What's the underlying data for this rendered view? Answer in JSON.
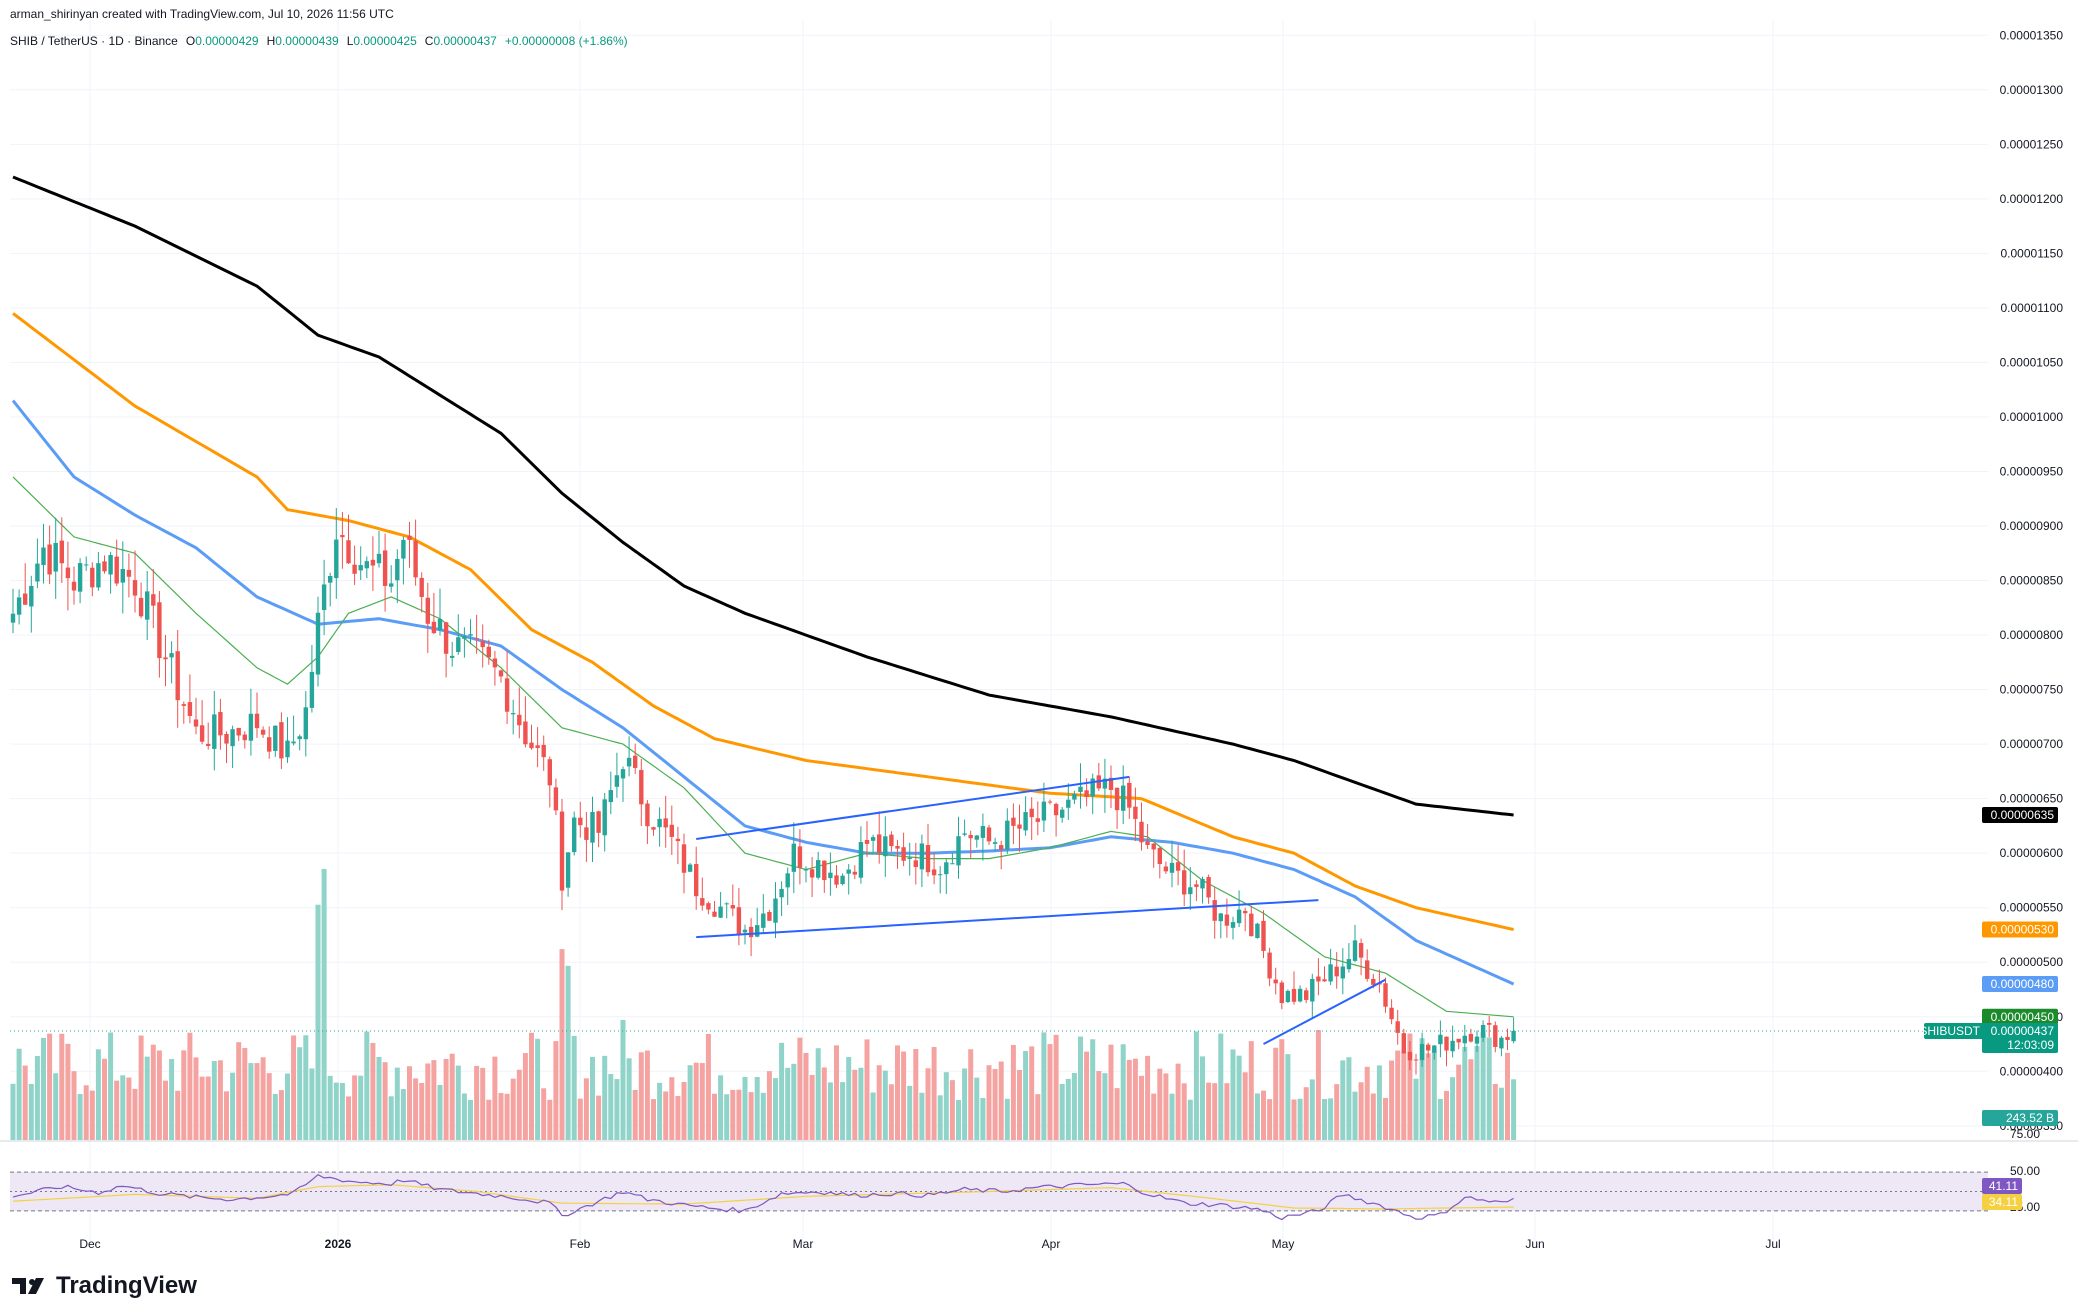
{
  "header": {
    "credit": "arman_shirinyan created with TradingView.com, Jul 10, 2026 11:56 UTC"
  },
  "legend": {
    "symbol": "SHIB / TetherUS · 1D · Binance",
    "o_label": "O",
    "o_value": "0.00000429",
    "h_label": "H",
    "h_value": "0.00000439",
    "l_label": "L",
    "l_value": "0.00000425",
    "c_label": "C",
    "c_value": "0.00000437",
    "change": "+0.00000008 (+1.86%)"
  },
  "brand": {
    "name": "TradingView"
  },
  "colors": {
    "up": "#26a69a",
    "down": "#ef5350",
    "vol_up": "#8fd3c9",
    "vol_down": "#f5a3a1",
    "ma_black": "#000000",
    "ma_orange": "#ff9800",
    "ma_blue": "#5b9cf6",
    "ma_green": "#4caf50",
    "trendline": "#2962ff",
    "rsi": "#7e57c2",
    "rsi_ma": "#f5d142",
    "rsi_band": "#ede7f6"
  },
  "chart_data": {
    "type": "candlestick",
    "price_ylim": [
      3.37e-06,
      1.364e-05
    ],
    "price_ticks": [
      "0.00001350",
      "0.00001300",
      "0.00001250",
      "0.00001200",
      "0.00001150",
      "0.00001100",
      "0.00001050",
      "0.00001000",
      "0.00000950",
      "0.00000900",
      "0.00000850",
      "0.00000800",
      "0.00000750",
      "0.00000700",
      "0.00000650",
      "0.00000600",
      "0.00000550",
      "0.00000500",
      "0.00000450",
      "0.00000400",
      "0.00000350"
    ],
    "x_labels": [
      "Dec",
      "2026",
      "Feb",
      "Mar",
      "Apr",
      "May",
      "Jun",
      "Jul"
    ],
    "close_anchors": [
      [
        0,
        8.2e-06
      ],
      [
        5,
        8.8e-06
      ],
      [
        10,
        8.5e-06
      ],
      [
        15,
        8.7e-06
      ],
      [
        20,
        8.5e-06
      ],
      [
        25,
        7.8e-06
      ],
      [
        30,
        7.1e-06
      ],
      [
        35,
        7.1e-06
      ],
      [
        40,
        7.2e-06
      ],
      [
        45,
        6.9e-06
      ],
      [
        48,
        7.3e-06
      ],
      [
        50,
        8.1e-06
      ],
      [
        53,
        9e-06
      ],
      [
        58,
        8.6e-06
      ],
      [
        62,
        8.5e-06
      ],
      [
        64,
        8.9e-06
      ],
      [
        68,
        8.2e-06
      ],
      [
        72,
        7.9e-06
      ],
      [
        76,
        7.8e-06
      ],
      [
        80,
        7.6e-06
      ],
      [
        84,
        7.1e-06
      ],
      [
        88,
        6.7e-06
      ],
      [
        90,
        5.8e-06
      ],
      [
        92,
        6.3e-06
      ],
      [
        96,
        6.2e-06
      ],
      [
        100,
        6.9e-06
      ],
      [
        104,
        6.4e-06
      ],
      [
        108,
        6.1e-06
      ],
      [
        112,
        5.7e-06
      ],
      [
        116,
        5.5e-06
      ],
      [
        120,
        5.3e-06
      ],
      [
        124,
        5.5e-06
      ],
      [
        128,
        6e-06
      ],
      [
        132,
        5.9e-06
      ],
      [
        136,
        5.8e-06
      ],
      [
        140,
        6.1e-06
      ],
      [
        144,
        6e-06
      ],
      [
        148,
        6e-06
      ],
      [
        152,
        5.9e-06
      ],
      [
        156,
        6.2e-06
      ],
      [
        160,
        6.1e-06
      ],
      [
        164,
        6.2e-06
      ],
      [
        168,
        6.3e-06
      ],
      [
        172,
        6.4e-06
      ],
      [
        176,
        6.5e-06
      ],
      [
        180,
        6.6e-06
      ],
      [
        183,
        6.4e-06
      ],
      [
        186,
        6e-06
      ],
      [
        190,
        5.8e-06
      ],
      [
        194,
        5.7e-06
      ],
      [
        198,
        5.4e-06
      ],
      [
        202,
        5.5e-06
      ],
      [
        205,
        5.1e-06
      ],
      [
        208,
        4.7e-06
      ],
      [
        212,
        4.7e-06
      ],
      [
        216,
        4.9e-06
      ],
      [
        220,
        5.1e-06
      ],
      [
        224,
        4.8e-06
      ],
      [
        228,
        4.2e-06
      ],
      [
        232,
        4.2e-06
      ],
      [
        236,
        4.3e-06
      ],
      [
        240,
        4.4e-06
      ],
      [
        244,
        4.3e-06
      ],
      [
        246,
        4.37e-06
      ]
    ],
    "moving_averages": [
      {
        "color_key": "ma_black",
        "points": [
          [
            0,
            1.22e-05
          ],
          [
            20,
            1.175e-05
          ],
          [
            40,
            1.12e-05
          ],
          [
            50,
            1.075e-05
          ],
          [
            60,
            1.055e-05
          ],
          [
            70,
            1.02e-05
          ],
          [
            80,
            9.85e-06
          ],
          [
            90,
            9.3e-06
          ],
          [
            100,
            8.85e-06
          ],
          [
            110,
            8.45e-06
          ],
          [
            120,
            8.2e-06
          ],
          [
            140,
            7.8e-06
          ],
          [
            160,
            7.45e-06
          ],
          [
            180,
            7.25e-06
          ],
          [
            200,
            7e-06
          ],
          [
            210,
            6.85e-06
          ],
          [
            220,
            6.65e-06
          ],
          [
            230,
            6.45e-06
          ],
          [
            246,
            6.35e-06
          ]
        ]
      },
      {
        "color_key": "ma_orange",
        "points": [
          [
            0,
            1.095e-05
          ],
          [
            20,
            1.01e-05
          ],
          [
            40,
            9.45e-06
          ],
          [
            45,
            9.15e-06
          ],
          [
            55,
            9.05e-06
          ],
          [
            65,
            8.9e-06
          ],
          [
            75,
            8.6e-06
          ],
          [
            85,
            8.05e-06
          ],
          [
            95,
            7.75e-06
          ],
          [
            105,
            7.35e-06
          ],
          [
            115,
            7.05e-06
          ],
          [
            130,
            6.85e-06
          ],
          [
            150,
            6.7e-06
          ],
          [
            170,
            6.55e-06
          ],
          [
            185,
            6.5e-06
          ],
          [
            200,
            6.15e-06
          ],
          [
            210,
            6e-06
          ],
          [
            220,
            5.7e-06
          ],
          [
            230,
            5.5e-06
          ],
          [
            246,
            5.3e-06
          ]
        ]
      },
      {
        "color_key": "ma_blue",
        "points": [
          [
            0,
            1.015e-05
          ],
          [
            10,
            9.45e-06
          ],
          [
            20,
            9.1e-06
          ],
          [
            30,
            8.8e-06
          ],
          [
            40,
            8.35e-06
          ],
          [
            50,
            8.1e-06
          ],
          [
            60,
            8.15e-06
          ],
          [
            70,
            8.05e-06
          ],
          [
            80,
            7.9e-06
          ],
          [
            90,
            7.5e-06
          ],
          [
            100,
            7.15e-06
          ],
          [
            110,
            6.7e-06
          ],
          [
            120,
            6.25e-06
          ],
          [
            130,
            6.1e-06
          ],
          [
            140,
            6e-06
          ],
          [
            150,
            6e-06
          ],
          [
            160,
            6.02e-06
          ],
          [
            170,
            6.05e-06
          ],
          [
            180,
            6.15e-06
          ],
          [
            190,
            6.1e-06
          ],
          [
            200,
            6e-06
          ],
          [
            210,
            5.85e-06
          ],
          [
            220,
            5.6e-06
          ],
          [
            230,
            5.2e-06
          ],
          [
            240,
            4.95e-06
          ],
          [
            246,
            4.8e-06
          ]
        ]
      },
      {
        "color_key": "ma_green",
        "points": [
          [
            0,
            9.45e-06
          ],
          [
            10,
            8.9e-06
          ],
          [
            20,
            8.75e-06
          ],
          [
            30,
            8.2e-06
          ],
          [
            40,
            7.7e-06
          ],
          [
            45,
            7.55e-06
          ],
          [
            50,
            7.8e-06
          ],
          [
            55,
            8.2e-06
          ],
          [
            62,
            8.35e-06
          ],
          [
            70,
            8.15e-06
          ],
          [
            80,
            7.7e-06
          ],
          [
            90,
            7.15e-06
          ],
          [
            100,
            7e-06
          ],
          [
            110,
            6.6e-06
          ],
          [
            120,
            6e-06
          ],
          [
            130,
            5.85e-06
          ],
          [
            140,
            6e-06
          ],
          [
            150,
            5.95e-06
          ],
          [
            160,
            5.95e-06
          ],
          [
            170,
            6.05e-06
          ],
          [
            180,
            6.2e-06
          ],
          [
            186,
            6.15e-06
          ],
          [
            195,
            5.75e-06
          ],
          [
            205,
            5.45e-06
          ],
          [
            215,
            5.05e-06
          ],
          [
            225,
            4.9e-06
          ],
          [
            235,
            4.55e-06
          ],
          [
            246,
            4.5e-06
          ]
        ]
      }
    ],
    "trendlines": [
      [
        [
          112,
          6.13e-06
        ],
        [
          183,
          6.7e-06
        ]
      ],
      [
        [
          112,
          5.23e-06
        ],
        [
          214,
          5.57e-06
        ]
      ],
      [
        [
          205,
          4.25e-06
        ],
        [
          225,
          4.84e-06
        ]
      ]
    ],
    "volume_label": "243.52 B",
    "rsi_ticks": [
      "75.00",
      "50.00",
      "25.00"
    ],
    "rsi_value": "41.11",
    "rsi_ma_value": "34.11",
    "rsi_anchors": [
      [
        0,
        45
      ],
      [
        8,
        55
      ],
      [
        14,
        49
      ],
      [
        18,
        56
      ],
      [
        24,
        48
      ],
      [
        30,
        44
      ],
      [
        36,
        42
      ],
      [
        42,
        45
      ],
      [
        46,
        48
      ],
      [
        50,
        66
      ],
      [
        56,
        60
      ],
      [
        62,
        58
      ],
      [
        64,
        62
      ],
      [
        70,
        52
      ],
      [
        76,
        48
      ],
      [
        82,
        44
      ],
      [
        88,
        38
      ],
      [
        90,
        25
      ],
      [
        94,
        35
      ],
      [
        100,
        50
      ],
      [
        104,
        42
      ],
      [
        110,
        36
      ],
      [
        116,
        32
      ],
      [
        120,
        30
      ],
      [
        126,
        48
      ],
      [
        132,
        50
      ],
      [
        138,
        46
      ],
      [
        144,
        48
      ],
      [
        150,
        46
      ],
      [
        156,
        52
      ],
      [
        162,
        50
      ],
      [
        168,
        54
      ],
      [
        176,
        57
      ],
      [
        182,
        58
      ],
      [
        186,
        48
      ],
      [
        192,
        38
      ],
      [
        198,
        36
      ],
      [
        204,
        32
      ],
      [
        208,
        23
      ],
      [
        214,
        30
      ],
      [
        218,
        47
      ],
      [
        224,
        36
      ],
      [
        230,
        23
      ],
      [
        234,
        26
      ],
      [
        238,
        44
      ],
      [
        244,
        38
      ],
      [
        246,
        41
      ]
    ],
    "rsi_ma_anchors": [
      [
        0,
        40
      ],
      [
        20,
        47
      ],
      [
        40,
        43
      ],
      [
        50,
        55
      ],
      [
        62,
        57
      ],
      [
        76,
        50
      ],
      [
        90,
        38
      ],
      [
        110,
        37
      ],
      [
        130,
        45
      ],
      [
        160,
        50
      ],
      [
        180,
        54
      ],
      [
        195,
        44
      ],
      [
        210,
        33
      ],
      [
        225,
        32
      ],
      [
        246,
        34
      ]
    ],
    "current_price_label": "SHIBUSDT",
    "current_price": "0.00000437",
    "countdown": "12:03:09",
    "price_badges": [
      {
        "value": "0.00000635",
        "color_key": "ma_black",
        "price": 6.35e-06
      },
      {
        "value": "0.00000530",
        "color_key": "ma_orange",
        "price": 5.3e-06
      },
      {
        "value": "0.00000480",
        "color_key": "ma_blue",
        "price": 4.8e-06
      },
      {
        "value": "0.00000450",
        "color_key": "ma_green",
        "price": 4.5e-06
      }
    ]
  }
}
